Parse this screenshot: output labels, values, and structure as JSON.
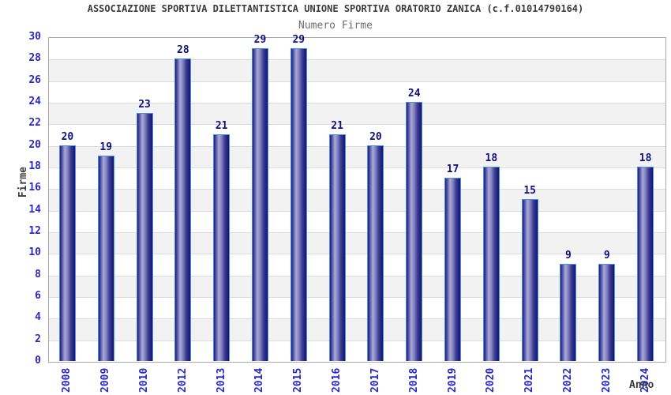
{
  "chart_data": {
    "type": "bar",
    "title": "ASSOCIAZIONE SPORTIVA DILETTANTISTICA UNIONE SPORTIVA ORATORIO ZANICA (c.f.01014790164)",
    "subtitle": "Numero Firme",
    "xlabel": "Anno",
    "ylabel": "Firme",
    "categories": [
      "2008",
      "2009",
      "2010",
      "2012",
      "2013",
      "2014",
      "2015",
      "2016",
      "2017",
      "2018",
      "2019",
      "2020",
      "2021",
      "2022",
      "2023",
      "2024"
    ],
    "values": [
      20,
      19,
      23,
      28,
      21,
      29,
      29,
      21,
      20,
      24,
      17,
      18,
      15,
      9,
      9,
      18
    ],
    "ylim": [
      0,
      30
    ],
    "ytick_step": 2,
    "legend": "none",
    "grid": "horizontal-bands-alternating",
    "colors": {
      "bar_dark": "#1c1c80",
      "bar_light": "#a9a9d9",
      "bar_border": "#4b8fe2",
      "tick_label": "#2828cd",
      "value_label": "#10107e",
      "axis_label": "#3c3c3c",
      "title": "#3c3c3c",
      "subtitle": "#6e6e6e",
      "band_gray": "#f2f2f2",
      "band_white": "#ffffff",
      "gridline": "#dcdcdc",
      "plot_border": "#aaaaaa"
    }
  }
}
